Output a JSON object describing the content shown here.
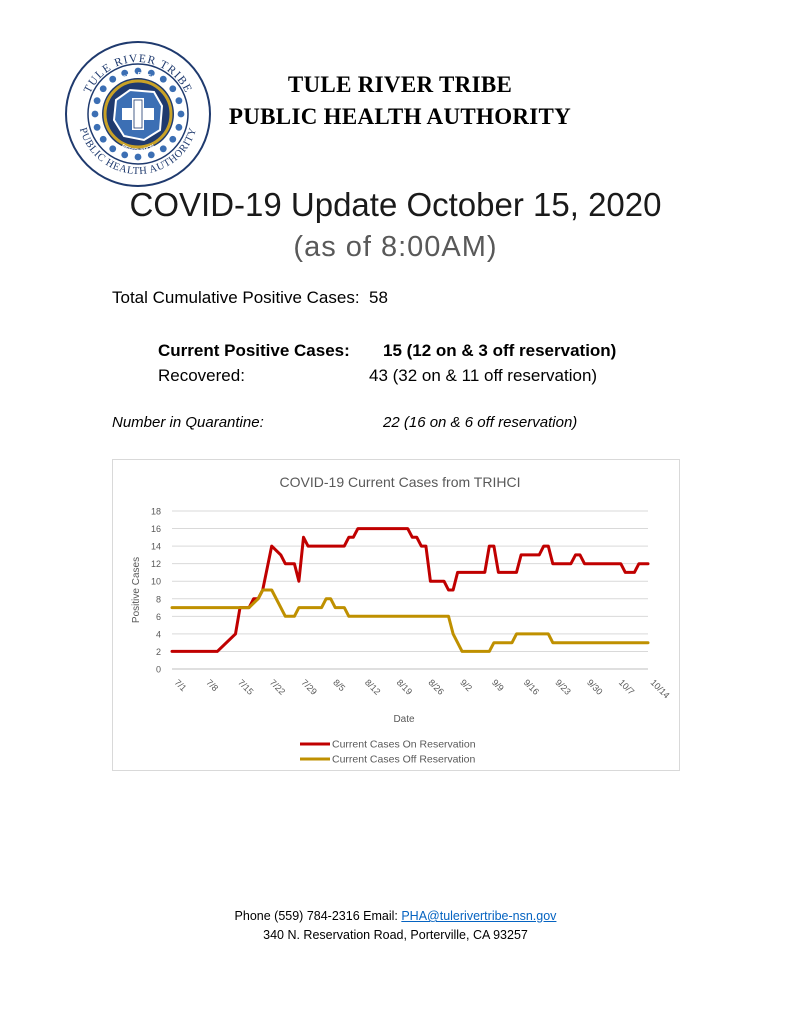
{
  "logo": {
    "text_top": "TULE RIVER TRIBE",
    "text_bottom": "PUBLIC HEALTH AUTHORITY",
    "banner_top": "TULE RIVER",
    "banner_bottom": "RESERVATION",
    "colors": {
      "navy": "#1f3a6e",
      "gold": "#c9a227",
      "blue": "#3c6fb4"
    }
  },
  "header": {
    "org_line1": "TULE RIVER TRIBE",
    "org_line2": "PUBLIC HEALTH AUTHORITY"
  },
  "title": "COVID-19 Update October 15, 2020",
  "subtitle": "(as of 8:00AM)",
  "stats": {
    "total_label": "Total Cumulative Positive Cases:",
    "total_value": "58",
    "current_label": "Current Positive Cases:",
    "current_value": "15 (12 on & 3 off reservation)",
    "recovered_label": "Recovered:",
    "recovered_value": "43 (32 on & 11 off reservation)",
    "quarantine_label": "Number in Quarantine:",
    "quarantine_value": "22 (16 on & 6 off reservation)"
  },
  "chart_data": {
    "type": "line",
    "title": "COVID-19 Current Cases from TRIHCI",
    "xlabel": "Date",
    "ylabel": "Positive Cases",
    "ylim": [
      0,
      18
    ],
    "yticks": [
      0,
      2,
      4,
      6,
      8,
      10,
      12,
      14,
      16,
      18
    ],
    "grid": true,
    "legend": "bottom",
    "x_start": "2020-07-01",
    "x_end": "2020-10-14",
    "x_tick_labels": [
      "7/1",
      "7/8",
      "7/15",
      "7/22",
      "7/29",
      "8/5",
      "8/12",
      "8/19",
      "8/26",
      "9/2",
      "9/9",
      "9/16",
      "9/23",
      "9/30",
      "10/7",
      "10/14"
    ],
    "series": [
      {
        "name": "Current Cases On Reservation",
        "color": "#c00000",
        "points": [
          [
            "7/1",
            2
          ],
          [
            "7/8",
            2
          ],
          [
            "7/10",
            2
          ],
          [
            "7/11",
            2
          ],
          [
            "7/15",
            4
          ],
          [
            "7/16",
            7
          ],
          [
            "7/18",
            7
          ],
          [
            "7/19",
            8
          ],
          [
            "7/20",
            8
          ],
          [
            "7/21",
            9
          ],
          [
            "7/23",
            14
          ],
          [
            "7/25",
            13
          ],
          [
            "7/26",
            12
          ],
          [
            "7/28",
            12
          ],
          [
            "7/29",
            10
          ],
          [
            "7/30",
            15
          ],
          [
            "7/31",
            14
          ],
          [
            "8/1",
            14
          ],
          [
            "8/8",
            14
          ],
          [
            "8/9",
            15
          ],
          [
            "8/10",
            15
          ],
          [
            "8/11",
            16
          ],
          [
            "8/22",
            16
          ],
          [
            "8/23",
            15
          ],
          [
            "8/24",
            15
          ],
          [
            "8/25",
            14
          ],
          [
            "8/26",
            14
          ],
          [
            "8/27",
            10
          ],
          [
            "8/30",
            10
          ],
          [
            "8/31",
            9
          ],
          [
            "9/1",
            9
          ],
          [
            "9/2",
            11
          ],
          [
            "9/8",
            11
          ],
          [
            "9/9",
            14
          ],
          [
            "9/10",
            14
          ],
          [
            "9/11",
            11
          ],
          [
            "9/15",
            11
          ],
          [
            "9/16",
            13
          ],
          [
            "9/20",
            13
          ],
          [
            "9/21",
            14
          ],
          [
            "9/22",
            14
          ],
          [
            "9/23",
            12
          ],
          [
            "9/27",
            12
          ],
          [
            "9/28",
            13
          ],
          [
            "9/29",
            13
          ],
          [
            "9/30",
            12
          ],
          [
            "10/8",
            12
          ],
          [
            "10/9",
            11
          ],
          [
            "10/11",
            11
          ],
          [
            "10/12",
            12
          ],
          [
            "10/14",
            12
          ]
        ]
      },
      {
        "name": "Current Cases Off Reservation",
        "color": "#bf9000",
        "points": [
          [
            "7/1",
            7
          ],
          [
            "7/15",
            7
          ],
          [
            "7/18",
            7
          ],
          [
            "7/20",
            8
          ],
          [
            "7/21",
            9
          ],
          [
            "7/23",
            9
          ],
          [
            "7/25",
            7
          ],
          [
            "7/26",
            6
          ],
          [
            "7/28",
            6
          ],
          [
            "7/29",
            7
          ],
          [
            "8/3",
            7
          ],
          [
            "8/4",
            8
          ],
          [
            "8/5",
            8
          ],
          [
            "8/6",
            7
          ],
          [
            "8/8",
            7
          ],
          [
            "8/9",
            6
          ],
          [
            "8/31",
            6
          ],
          [
            "9/1",
            4
          ],
          [
            "9/3",
            2
          ],
          [
            "9/9",
            2
          ],
          [
            "9/10",
            3
          ],
          [
            "9/14",
            3
          ],
          [
            "9/15",
            4
          ],
          [
            "9/22",
            4
          ],
          [
            "9/23",
            3
          ],
          [
            "10/14",
            3
          ]
        ]
      }
    ]
  },
  "footer": {
    "contact_prefix": "Phone (559) 784-2316 Email: ",
    "email": "PHA@tulerivertribe-nsn.gov",
    "address": "340 N. Reservation Road, Porterville, CA 93257"
  }
}
